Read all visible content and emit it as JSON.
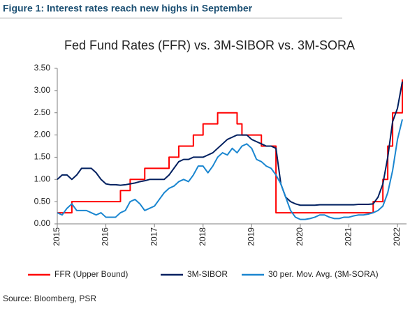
{
  "caption": "Figure 1: Interest rates reach new highs in September",
  "source": "Source: Bloomberg, PSR",
  "chart_data": {
    "type": "line",
    "title": "Fed Fund Rates (FFR) vs. 3M-SIBOR vs. 3M-SORA",
    "x": [
      2015.0,
      2015.1,
      2015.2,
      2015.3,
      2015.4,
      2015.5,
      2015.6,
      2015.7,
      2015.8,
      2015.9,
      2016.0,
      2016.1,
      2016.2,
      2016.3,
      2016.4,
      2016.5,
      2016.6,
      2016.7,
      2016.8,
      2016.9,
      2017.0,
      2017.1,
      2017.2,
      2017.3,
      2017.4,
      2017.5,
      2017.6,
      2017.7,
      2017.8,
      2017.9,
      2018.0,
      2018.1,
      2018.2,
      2018.3,
      2018.4,
      2018.5,
      2018.6,
      2018.7,
      2018.8,
      2018.9,
      2019.0,
      2019.1,
      2019.2,
      2019.3,
      2019.4,
      2019.5,
      2019.6,
      2019.7,
      2019.8,
      2019.9,
      2020.0,
      2020.1,
      2020.2,
      2020.3,
      2020.4,
      2020.5,
      2020.6,
      2020.7,
      2020.8,
      2020.9,
      2021.0,
      2021.1,
      2021.2,
      2021.3,
      2021.4,
      2021.5,
      2021.6,
      2021.7,
      2021.8,
      2021.9,
      2022.0,
      2022.1
    ],
    "series": [
      {
        "name": "FFR (Upper Bound)",
        "color": "#ff0000",
        "step": true,
        "values": [
          0.25,
          0.25,
          0.25,
          0.5,
          0.5,
          0.5,
          0.5,
          0.5,
          0.5,
          0.5,
          0.5,
          0.5,
          0.5,
          0.75,
          0.75,
          1,
          1,
          1,
          1.25,
          1.25,
          1.25,
          1.25,
          1.25,
          1.5,
          1.5,
          1.75,
          1.75,
          1.75,
          2,
          2,
          2.25,
          2.25,
          2.25,
          2.5,
          2.5,
          2.5,
          2.5,
          2.25,
          2,
          2,
          2,
          2,
          1.75,
          1.75,
          1.75,
          0.25,
          0.25,
          0.25,
          0.25,
          0.25,
          0.25,
          0.25,
          0.25,
          0.25,
          0.25,
          0.25,
          0.25,
          0.25,
          0.25,
          0.25,
          0.25,
          0.25,
          0.25,
          0.25,
          0.25,
          0.5,
          0.5,
          1,
          1.75,
          2.5,
          2.5,
          3.25
        ]
      },
      {
        "name": "3M-SIBOR",
        "color": "#002060",
        "step": false,
        "values": [
          1.0,
          1.1,
          1.1,
          1.0,
          1.1,
          1.25,
          1.25,
          1.25,
          1.15,
          1.0,
          0.9,
          0.88,
          0.88,
          0.87,
          0.88,
          0.9,
          0.92,
          0.95,
          0.97,
          1.0,
          1.0,
          1.0,
          1.0,
          1.1,
          1.25,
          1.4,
          1.45,
          1.45,
          1.5,
          1.5,
          1.5,
          1.55,
          1.6,
          1.7,
          1.8,
          1.9,
          1.95,
          2.0,
          2.0,
          2.0,
          1.9,
          1.85,
          1.8,
          1.75,
          1.75,
          1.7,
          0.9,
          0.6,
          0.5,
          0.45,
          0.42,
          0.42,
          0.42,
          0.42,
          0.43,
          0.43,
          0.43,
          0.43,
          0.43,
          0.43,
          0.43,
          0.43,
          0.44,
          0.44,
          0.44,
          0.45,
          0.6,
          0.9,
          1.5,
          2.3,
          2.6,
          3.2
        ]
      },
      {
        "name": "30 per. Mov. Avg. (3M-SORA)",
        "color": "#1a86d0",
        "step": false,
        "values": [
          0.25,
          0.2,
          0.35,
          0.45,
          0.3,
          0.3,
          0.3,
          0.25,
          0.2,
          0.25,
          0.15,
          0.15,
          0.15,
          0.25,
          0.3,
          0.5,
          0.55,
          0.45,
          0.3,
          0.35,
          0.4,
          0.55,
          0.7,
          0.8,
          0.85,
          0.95,
          1.0,
          0.95,
          1.1,
          1.3,
          1.3,
          1.15,
          1.3,
          1.5,
          1.6,
          1.55,
          1.7,
          1.6,
          1.75,
          1.8,
          1.7,
          1.45,
          1.4,
          1.3,
          1.25,
          1.1,
          0.9,
          0.6,
          0.3,
          0.15,
          0.1,
          0.1,
          0.12,
          0.15,
          0.2,
          0.2,
          0.15,
          0.12,
          0.12,
          0.15,
          0.15,
          0.18,
          0.2,
          0.2,
          0.22,
          0.25,
          0.3,
          0.4,
          0.7,
          1.2,
          1.9,
          2.35
        ]
      }
    ],
    "xlim": [
      2015,
      2022.1
    ],
    "xticks": [
      2015,
      2016,
      2017,
      2018,
      2019,
      2020,
      2021,
      2022
    ],
    "ylim": [
      0,
      3.5
    ],
    "yticks": [
      {
        "value": 0,
        "label": "0.00"
      },
      {
        "value": 0.5,
        "label": "0.50"
      },
      {
        "value": 1,
        "label": "1.00"
      },
      {
        "value": 1.5,
        "label": "1.50"
      },
      {
        "value": 2,
        "label": "2.00"
      },
      {
        "value": 2.5,
        "label": "2.50"
      },
      {
        "value": 3,
        "label": "3.00"
      },
      {
        "value": 3.5,
        "label": "3.50"
      }
    ],
    "grid": false
  }
}
